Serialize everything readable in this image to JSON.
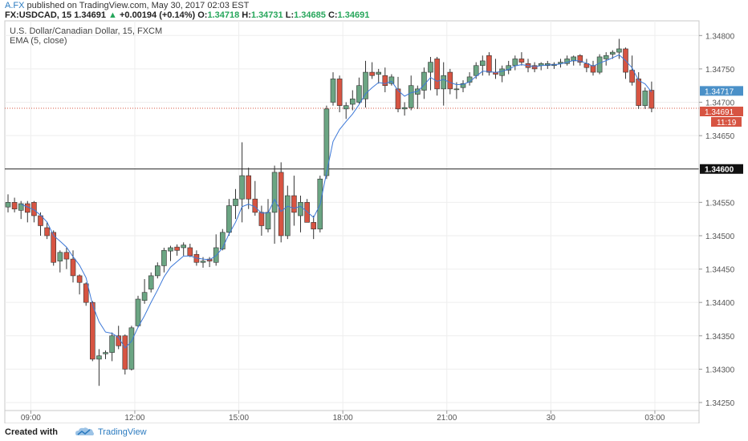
{
  "header": {
    "publisher": "A.FX",
    "published_text": " published on TradingView.com, May 30, 2017 02:03 EST",
    "symbol": "FX:USDCAD, 15",
    "last": "1.34691",
    "change_arrow": "▲",
    "change": "+0.00194 (+0.14%)",
    "o_label": "O:",
    "o_val": "1.34718",
    "h_label": "H:",
    "h_val": "1.34731",
    "l_label": "L:",
    "l_val": "1.34685",
    "c_label": "C:",
    "c_val": "1.34691"
  },
  "legend": {
    "instrument": "U.S. Dollar/Canadian Dollar, 15, FXCM",
    "indicator": "EMA (5, close)"
  },
  "footer": {
    "created_with": "Created with",
    "brand": "TradingView"
  },
  "chart_data": {
    "type": "candlestick",
    "y_range": [
      1.34238,
      1.34822
    ],
    "price_ticks": [
      "1.34800",
      "1.34750",
      "1.34700",
      "1.34650",
      "1.34550",
      "1.34500",
      "1.34450",
      "1.34400",
      "1.34350",
      "1.34300",
      "1.34250"
    ],
    "time_ticks": [
      "09:00",
      "12:00",
      "15:00",
      "18:00",
      "21:00",
      "30",
      "03:00"
    ],
    "time_tick_index": [
      3.5,
      19.5,
      35.5,
      51.5,
      67.5,
      83.5,
      99.5
    ],
    "markers": {
      "level_line": "1.34600",
      "last_price": "1.34717",
      "current_price": "1.34691",
      "countdown": "11:19"
    },
    "indicator": "EMA (5, close)",
    "colors": {
      "up": "#6ba583",
      "down": "#d75442",
      "ema": "#3c78d8",
      "last_label": "#4a90c8",
      "current_label": "#d75442"
    },
    "candles": [
      {
        "o": 1.34543,
        "h": 1.34562,
        "l": 1.34535,
        "c": 1.3455
      },
      {
        "o": 1.3455,
        "h": 1.34557,
        "l": 1.34535,
        "c": 1.3454
      },
      {
        "o": 1.34538,
        "h": 1.34552,
        "l": 1.34525,
        "c": 1.34548
      },
      {
        "o": 1.34548,
        "h": 1.34552,
        "l": 1.3452,
        "c": 1.34535
      },
      {
        "o": 1.3455,
        "h": 1.34552,
        "l": 1.3452,
        "c": 1.3453
      },
      {
        "o": 1.3453,
        "h": 1.34535,
        "l": 1.345,
        "c": 1.34515
      },
      {
        "o": 1.34512,
        "h": 1.3452,
        "l": 1.34495,
        "c": 1.345
      },
      {
        "o": 1.34505,
        "h": 1.34508,
        "l": 1.34455,
        "c": 1.3446
      },
      {
        "o": 1.34462,
        "h": 1.34478,
        "l": 1.34445,
        "c": 1.34475
      },
      {
        "o": 1.34475,
        "h": 1.34482,
        "l": 1.3445,
        "c": 1.34465
      },
      {
        "o": 1.34465,
        "h": 1.34478,
        "l": 1.3443,
        "c": 1.3444
      },
      {
        "o": 1.3444,
        "h": 1.34442,
        "l": 1.34412,
        "c": 1.3443
      },
      {
        "o": 1.34428,
        "h": 1.3443,
        "l": 1.34395,
        "c": 1.344
      },
      {
        "o": 1.344,
        "h": 1.34402,
        "l": 1.34312,
        "c": 1.34315
      },
      {
        "o": 1.34315,
        "h": 1.3433,
        "l": 1.34275,
        "c": 1.3432
      },
      {
        "o": 1.34323,
        "h": 1.34328,
        "l": 1.34315,
        "c": 1.34325
      },
      {
        "o": 1.34325,
        "h": 1.34355,
        "l": 1.34312,
        "c": 1.3435
      },
      {
        "o": 1.3435,
        "h": 1.34365,
        "l": 1.3433,
        "c": 1.34335
      },
      {
        "o": 1.3435,
        "h": 1.34352,
        "l": 1.34292,
        "c": 1.343
      },
      {
        "o": 1.343,
        "h": 1.34365,
        "l": 1.34298,
        "c": 1.34362
      },
      {
        "o": 1.34365,
        "h": 1.3441,
        "l": 1.34362,
        "c": 1.34405
      },
      {
        "o": 1.34403,
        "h": 1.34435,
        "l": 1.34398,
        "c": 1.34415
      },
      {
        "o": 1.3442,
        "h": 1.34445,
        "l": 1.34415,
        "c": 1.3444
      },
      {
        "o": 1.3444,
        "h": 1.3446,
        "l": 1.34436,
        "c": 1.34455
      },
      {
        "o": 1.34455,
        "h": 1.34482,
        "l": 1.34445,
        "c": 1.34478
      },
      {
        "o": 1.34477,
        "h": 1.34485,
        "l": 1.34462,
        "c": 1.34482
      },
      {
        "o": 1.34483,
        "h": 1.34487,
        "l": 1.3447,
        "c": 1.34478
      },
      {
        "o": 1.34482,
        "h": 1.3449,
        "l": 1.3447,
        "c": 1.34486
      },
      {
        "o": 1.34482,
        "h": 1.34488,
        "l": 1.34468,
        "c": 1.3447
      },
      {
        "o": 1.34472,
        "h": 1.34478,
        "l": 1.34455,
        "c": 1.3446
      },
      {
        "o": 1.3446,
        "h": 1.34468,
        "l": 1.34452,
        "c": 1.34462
      },
      {
        "o": 1.34465,
        "h": 1.34468,
        "l": 1.34453,
        "c": 1.34462
      },
      {
        "o": 1.3446,
        "h": 1.34502,
        "l": 1.34455,
        "c": 1.34482
      },
      {
        "o": 1.3448,
        "h": 1.3451,
        "l": 1.34478,
        "c": 1.34505
      },
      {
        "o": 1.34505,
        "h": 1.34555,
        "l": 1.345,
        "c": 1.34545
      },
      {
        "o": 1.34545,
        "h": 1.3457,
        "l": 1.34525,
        "c": 1.34555
      },
      {
        "o": 1.34555,
        "h": 1.3464,
        "l": 1.3452,
        "c": 1.3459
      },
      {
        "o": 1.3459,
        "h": 1.34602,
        "l": 1.3454,
        "c": 1.34555
      },
      {
        "o": 1.34555,
        "h": 1.34582,
        "l": 1.3453,
        "c": 1.34535
      },
      {
        "o": 1.34535,
        "h": 1.34545,
        "l": 1.345,
        "c": 1.34515
      },
      {
        "o": 1.3451,
        "h": 1.34555,
        "l": 1.34505,
        "c": 1.34535
      },
      {
        "o": 1.34535,
        "h": 1.34605,
        "l": 1.34488,
        "c": 1.34595
      },
      {
        "o": 1.34595,
        "h": 1.3461,
        "l": 1.3449,
        "c": 1.345
      },
      {
        "o": 1.345,
        "h": 1.34575,
        "l": 1.34495,
        "c": 1.3456
      },
      {
        "o": 1.3456,
        "h": 1.3459,
        "l": 1.34515,
        "c": 1.34535
      },
      {
        "o": 1.3453,
        "h": 1.3456,
        "l": 1.34505,
        "c": 1.3455
      },
      {
        "o": 1.3455,
        "h": 1.34555,
        "l": 1.3452,
        "c": 1.3452
      },
      {
        "o": 1.3452,
        "h": 1.3453,
        "l": 1.34495,
        "c": 1.3451
      },
      {
        "o": 1.3451,
        "h": 1.3459,
        "l": 1.34505,
        "c": 1.34585
      },
      {
        "o": 1.3459,
        "h": 1.34695,
        "l": 1.34585,
        "c": 1.3469
      },
      {
        "o": 1.347,
        "h": 1.34745,
        "l": 1.34695,
        "c": 1.34735
      },
      {
        "o": 1.34735,
        "h": 1.3474,
        "l": 1.34685,
        "c": 1.34695
      },
      {
        "o": 1.3469,
        "h": 1.347,
        "l": 1.34675,
        "c": 1.34695
      },
      {
        "o": 1.34697,
        "h": 1.34718,
        "l": 1.34688,
        "c": 1.34705
      },
      {
        "o": 1.347,
        "h": 1.34737,
        "l": 1.34698,
        "c": 1.34725
      },
      {
        "o": 1.34705,
        "h": 1.34762,
        "l": 1.34692,
        "c": 1.34745
      },
      {
        "o": 1.34745,
        "h": 1.3476,
        "l": 1.34735,
        "c": 1.3474
      },
      {
        "o": 1.34742,
        "h": 1.3475,
        "l": 1.34728,
        "c": 1.34745
      },
      {
        "o": 1.3474,
        "h": 1.34752,
        "l": 1.34715,
        "c": 1.34725
      },
      {
        "o": 1.34728,
        "h": 1.34742,
        "l": 1.34725,
        "c": 1.34738
      },
      {
        "o": 1.3472,
        "h": 1.34738,
        "l": 1.34685,
        "c": 1.3469
      },
      {
        "o": 1.3469,
        "h": 1.347,
        "l": 1.3468,
        "c": 1.34692
      },
      {
        "o": 1.34692,
        "h": 1.3474,
        "l": 1.34688,
        "c": 1.34725
      },
      {
        "o": 1.34712,
        "h": 1.34725,
        "l": 1.3469,
        "c": 1.3472
      },
      {
        "o": 1.34718,
        "h": 1.34752,
        "l": 1.34705,
        "c": 1.34745
      },
      {
        "o": 1.34745,
        "h": 1.34768,
        "l": 1.34718,
        "c": 1.3476
      },
      {
        "o": 1.34765,
        "h": 1.34768,
        "l": 1.3471,
        "c": 1.3472
      },
      {
        "o": 1.3472,
        "h": 1.3476,
        "l": 1.34695,
        "c": 1.3474
      },
      {
        "o": 1.34745,
        "h": 1.3475,
        "l": 1.34712,
        "c": 1.3472
      },
      {
        "o": 1.3472,
        "h": 1.3473,
        "l": 1.34705,
        "c": 1.3472
      },
      {
        "o": 1.34722,
        "h": 1.34733,
        "l": 1.34715,
        "c": 1.34728
      },
      {
        "o": 1.3473,
        "h": 1.34745,
        "l": 1.34725,
        "c": 1.34738
      },
      {
        "o": 1.3474,
        "h": 1.3476,
        "l": 1.34735,
        "c": 1.34755
      },
      {
        "o": 1.34755,
        "h": 1.3477,
        "l": 1.3474,
        "c": 1.34762
      },
      {
        "o": 1.3477,
        "h": 1.34775,
        "l": 1.3474,
        "c": 1.34745
      },
      {
        "o": 1.34745,
        "h": 1.34765,
        "l": 1.34735,
        "c": 1.34742
      },
      {
        "o": 1.3474,
        "h": 1.34755,
        "l": 1.3473,
        "c": 1.3475
      },
      {
        "o": 1.34748,
        "h": 1.34762,
        "l": 1.34742,
        "c": 1.34755
      },
      {
        "o": 1.34755,
        "h": 1.3477,
        "l": 1.34748,
        "c": 1.34765
      },
      {
        "o": 1.34765,
        "h": 1.34775,
        "l": 1.34755,
        "c": 1.3476
      },
      {
        "o": 1.34758,
        "h": 1.34765,
        "l": 1.34745,
        "c": 1.34752
      },
      {
        "o": 1.34755,
        "h": 1.3476,
        "l": 1.34745,
        "c": 1.3475
      },
      {
        "o": 1.34755,
        "h": 1.3476,
        "l": 1.34748,
        "c": 1.34758
      },
      {
        "o": 1.34755,
        "h": 1.34762,
        "l": 1.3475,
        "c": 1.34758
      },
      {
        "o": 1.34755,
        "h": 1.3476,
        "l": 1.3475,
        "c": 1.34757
      },
      {
        "o": 1.34758,
        "h": 1.34765,
        "l": 1.34752,
        "c": 1.3476
      },
      {
        "o": 1.34758,
        "h": 1.3477,
        "l": 1.34755,
        "c": 1.34765
      },
      {
        "o": 1.34762,
        "h": 1.3477,
        "l": 1.34755,
        "c": 1.34768
      },
      {
        "o": 1.3477,
        "h": 1.34772,
        "l": 1.34755,
        "c": 1.3476
      },
      {
        "o": 1.34758,
        "h": 1.34765,
        "l": 1.34745,
        "c": 1.34752
      },
      {
        "o": 1.34755,
        "h": 1.34762,
        "l": 1.3474,
        "c": 1.34745
      },
      {
        "o": 1.34745,
        "h": 1.34772,
        "l": 1.34742,
        "c": 1.34768
      },
      {
        "o": 1.34765,
        "h": 1.34775,
        "l": 1.34755,
        "c": 1.3477
      },
      {
        "o": 1.34772,
        "h": 1.34778,
        "l": 1.34765,
        "c": 1.34775
      },
      {
        "o": 1.34775,
        "h": 1.34795,
        "l": 1.34765,
        "c": 1.3478
      },
      {
        "o": 1.3478,
        "h": 1.34782,
        "l": 1.34735,
        "c": 1.34745
      },
      {
        "o": 1.34748,
        "h": 1.3477,
        "l": 1.34725,
        "c": 1.3473
      },
      {
        "o": 1.34735,
        "h": 1.34745,
        "l": 1.3469,
        "c": 1.34695
      },
      {
        "o": 1.34695,
        "h": 1.34722,
        "l": 1.3469,
        "c": 1.34717
      },
      {
        "o": 1.34718,
        "h": 1.34731,
        "l": 1.34685,
        "c": 1.34691
      }
    ]
  }
}
